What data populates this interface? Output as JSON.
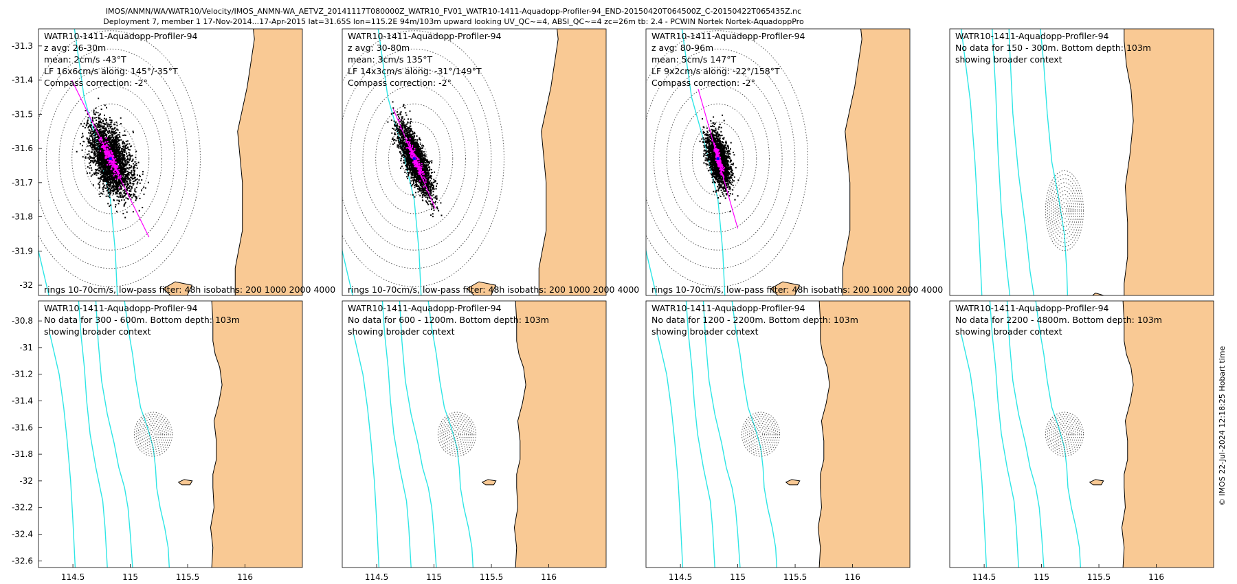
{
  "header": {
    "line1": "IMOS/ANMN/WA/WATR10/Velocity/IMOS_ANMN-WA_AETVZ_20141117T080000Z_WATR10_FV01_WATR10-1411-Aquadopp-Profiler-94_END-20150420T064500Z_C-20150422T065435Z.nc",
    "line2": "Deployment 7, member 1 17-Nov-2014...17-Apr-2015 lat=31.65S lon=115.2E 94m/103m upward looking UV_QC~=4, ABSI_QC~=4 zc=26m tb: 2.4 - PCWIN Nortek Nortek-AquadoppPro"
  },
  "footer_credit": "© IMOS 22-Jul-2024 12:18:25 Hobart time",
  "colors": {
    "land": "#f9c994",
    "isobath": "#2ee6e6",
    "scatter": "#000000",
    "lowpass": "#ff00ff",
    "axis_line": "#ff00ff",
    "mean": "#0000ff",
    "coast": "#000000"
  },
  "chart_data": [
    {
      "type": "scatter",
      "id": "p1",
      "row": 0,
      "col": 0,
      "title": "WATR10-1411-Aquadopp-Profiler-94",
      "lines": [
        "z avg: 26-30m",
        "mean: 2cm/s -43°T",
        "LF 16x6cm/s along: 145°/-35°T",
        "Compass correction: -2°"
      ],
      "footer": "rings 10-70cm/s, low-pass filter: 48h isobaths: 200 1000 2000 4000",
      "xlim": [
        114.9,
        116.0
      ],
      "ylim": [
        -32.03,
        -31.25
      ],
      "yticks": [
        -31.3,
        -31.4,
        -31.5,
        -31.6,
        -31.7,
        -31.8,
        -31.9,
        -32
      ],
      "ytick_labels": [
        "-31.3",
        "-31.4",
        "-31.5",
        "-31.6",
        "-31.7",
        "-31.8",
        "-31.9",
        "-32"
      ],
      "xticks": [],
      "xtick_labels": [],
      "center": [
        115.2,
        -31.63
      ],
      "ring_step_deg": 0.0535,
      "ring_count": 7,
      "cloud": {
        "major_deg": 0.105,
        "minor_deg": 0.06,
        "angle": 145,
        "n": 3000
      },
      "lf": {
        "major_deg": 0.065,
        "minor_deg": 0.018,
        "n": 220
      },
      "axis_line": {
        "angle": 145,
        "half_len_deg": 0.28
      },
      "show_mask_top": true
    },
    {
      "type": "scatter",
      "id": "p2",
      "row": 0,
      "col": 1,
      "title": "WATR10-1411-Aquadopp-Profiler-94",
      "lines": [
        "z avg: 30-80m",
        "mean: 3cm/s 135°T",
        "LF 14x3cm/s along: -31°/149°T",
        "Compass correction: -2°"
      ],
      "footer": "rings 10-70cm/s, low-pass filter: 48h isobaths: 200 1000 2000 4000",
      "xlim": [
        114.9,
        116.0
      ],
      "ylim": [
        -32.03,
        -31.25
      ],
      "yticks": [],
      "ytick_labels": [],
      "xticks": [],
      "xtick_labels": [],
      "center": [
        115.2,
        -31.63
      ],
      "ring_step_deg": 0.0535,
      "ring_count": 7,
      "cloud": {
        "major_deg": 0.105,
        "minor_deg": 0.035,
        "angle": 149,
        "n": 2600
      },
      "lf": {
        "major_deg": 0.075,
        "minor_deg": 0.012,
        "n": 200
      },
      "axis_line": {
        "angle": 149,
        "half_len_deg": 0.17
      },
      "show_mask_top": true
    },
    {
      "type": "scatter",
      "id": "p3",
      "row": 0,
      "col": 2,
      "title": "WATR10-1411-Aquadopp-Profiler-94",
      "lines": [
        "z avg: 80-96m",
        "mean: 5cm/s 147°T",
        "LF 9x2cm/s along: -22°/158°T",
        "Compass correction: -2°"
      ],
      "footer": "rings 10-70cm/s, low-pass filter: 48h isobaths: 200 1000 2000 4000",
      "xlim": [
        114.9,
        116.0
      ],
      "ylim": [
        -32.03,
        -31.25
      ],
      "yticks": [],
      "ytick_labels": [],
      "xticks": [],
      "xtick_labels": [],
      "center": [
        115.2,
        -31.63
      ],
      "ring_step_deg": 0.0535,
      "ring_count": 7,
      "cloud": {
        "major_deg": 0.075,
        "minor_deg": 0.035,
        "angle": 158,
        "n": 2400
      },
      "lf": {
        "major_deg": 0.05,
        "minor_deg": 0.01,
        "n": 180
      },
      "axis_line": {
        "angle": 158,
        "half_len_deg": 0.22
      },
      "show_mask_top": true
    },
    {
      "type": "map",
      "id": "p4",
      "row": 0,
      "col": 3,
      "title": "WATR10-1411-Aquadopp-Profiler-94",
      "lines": [
        "No data for 150 - 300m. Bottom depth: 103m",
        "showing broader context"
      ],
      "xlim": [
        114.2,
        116.5
      ],
      "ylim": [
        -32.0,
        -30.9
      ],
      "yticks": [],
      "ytick_labels": [],
      "xticks": [],
      "xtick_labels": [],
      "center": [
        115.2,
        -31.65
      ],
      "ring_step_deg": 0.0165,
      "ring_count": 10
    },
    {
      "type": "map",
      "id": "p5",
      "row": 1,
      "col": 0,
      "title": "WATR10-1411-Aquadopp-Profiler-94",
      "lines": [
        "No data for 300 - 600m. Bottom depth: 103m",
        "showing broader context"
      ],
      "xlim": [
        114.2,
        116.5
      ],
      "ylim": [
        -32.65,
        -30.65
      ],
      "yticks": [
        -30.8,
        -31,
        -31.2,
        -31.4,
        -31.6,
        -31.8,
        -32,
        -32.2,
        -32.4,
        -32.6
      ],
      "ytick_labels": [
        "-30.8",
        "-31",
        "-31.2",
        "-31.4",
        "-31.6",
        "-31.8",
        "-32",
        "-32.2",
        "-32.4",
        "-32.6"
      ],
      "xticks": [
        114.5,
        115,
        115.5,
        116
      ],
      "xtick_labels": [
        "114.5",
        "115",
        "115.5",
        "116"
      ],
      "center": [
        115.2,
        -31.65
      ],
      "ring_step_deg": 0.0165,
      "ring_count": 10
    },
    {
      "type": "map",
      "id": "p6",
      "row": 1,
      "col": 1,
      "title": "WATR10-1411-Aquadopp-Profiler-94",
      "lines": [
        "No data for 600 - 1200m. Bottom depth: 103m",
        "showing broader context"
      ],
      "xlim": [
        114.2,
        116.5
      ],
      "ylim": [
        -32.65,
        -30.65
      ],
      "yticks": [],
      "ytick_labels": [],
      "xticks": [
        114.5,
        115,
        115.5,
        116
      ],
      "xtick_labels": [
        "114.5",
        "115",
        "115.5",
        "116"
      ],
      "center": [
        115.2,
        -31.65
      ],
      "ring_step_deg": 0.0165,
      "ring_count": 10
    },
    {
      "type": "map",
      "id": "p7",
      "row": 1,
      "col": 2,
      "title": "WATR10-1411-Aquadopp-Profiler-94",
      "lines": [
        "No data for 1200 - 2200m. Bottom depth: 103m",
        "showing broader context"
      ],
      "xlim": [
        114.2,
        116.5
      ],
      "ylim": [
        -32.65,
        -30.65
      ],
      "yticks": [],
      "ytick_labels": [],
      "xticks": [
        114.5,
        115,
        115.5,
        116
      ],
      "xtick_labels": [
        "114.5",
        "115",
        "115.5",
        "116"
      ],
      "center": [
        115.2,
        -31.65
      ],
      "ring_step_deg": 0.0165,
      "ring_count": 10
    },
    {
      "type": "map",
      "id": "p8",
      "row": 1,
      "col": 3,
      "title": "WATR10-1411-Aquadopp-Profiler-94",
      "lines": [
        "No data for 2200 - 4800m. Bottom depth: 103m",
        "showing broader context"
      ],
      "xlim": [
        114.2,
        116.5
      ],
      "ylim": [
        -32.65,
        -30.65
      ],
      "yticks": [],
      "ytick_labels": [],
      "xticks": [
        114.5,
        115,
        115.5,
        116
      ],
      "xtick_labels": [
        "114.5",
        "115",
        "115.5",
        "116"
      ],
      "center": [
        115.2,
        -31.65
      ],
      "ring_step_deg": 0.0165,
      "ring_count": 10
    }
  ],
  "map_features": {
    "coast": [
      [
        115.71,
        -30.65
      ],
      [
        115.72,
        -30.8
      ],
      [
        115.72,
        -30.95
      ],
      [
        115.74,
        -31.05
      ],
      [
        115.78,
        -31.15
      ],
      [
        115.8,
        -31.28
      ],
      [
        115.77,
        -31.42
      ],
      [
        115.73,
        -31.55
      ],
      [
        115.75,
        -31.7
      ],
      [
        115.75,
        -31.84
      ],
      [
        115.72,
        -31.95
      ],
      [
        115.72,
        -32.05
      ],
      [
        115.73,
        -32.2
      ],
      [
        115.7,
        -32.35
      ],
      [
        115.72,
        -32.5
      ],
      [
        115.71,
        -32.65
      ]
    ],
    "isobaths": [
      [
        [
          114.95,
          -30.65
        ],
        [
          114.98,
          -30.85
        ],
        [
          115.02,
          -31.05
        ],
        [
          115.05,
          -31.25
        ],
        [
          115.09,
          -31.45
        ],
        [
          115.15,
          -31.6
        ],
        [
          115.2,
          -31.75
        ],
        [
          115.22,
          -31.9
        ],
        [
          115.23,
          -32.05
        ],
        [
          115.26,
          -32.2
        ],
        [
          115.3,
          -32.35
        ],
        [
          115.33,
          -32.5
        ],
        [
          115.34,
          -32.65
        ]
      ],
      [
        [
          114.7,
          -30.65
        ],
        [
          114.72,
          -30.95
        ],
        [
          114.75,
          -31.25
        ],
        [
          114.8,
          -31.5
        ],
        [
          114.86,
          -31.72
        ],
        [
          114.9,
          -31.9
        ],
        [
          114.95,
          -32.05
        ],
        [
          114.98,
          -32.2
        ],
        [
          115.0,
          -32.4
        ],
        [
          115.02,
          -32.65
        ]
      ],
      [
        [
          114.55,
          -30.65
        ],
        [
          114.57,
          -30.9
        ],
        [
          114.6,
          -31.15
        ],
        [
          114.62,
          -31.4
        ],
        [
          114.65,
          -31.65
        ],
        [
          114.7,
          -31.9
        ],
        [
          114.76,
          -32.15
        ],
        [
          114.78,
          -32.35
        ],
        [
          114.8,
          -32.65
        ]
      ],
      [
        [
          114.3,
          -30.9
        ],
        [
          114.38,
          -31.2
        ],
        [
          114.42,
          -31.45
        ],
        [
          114.45,
          -31.7
        ],
        [
          114.48,
          -32.0
        ],
        [
          114.5,
          -32.3
        ],
        [
          114.52,
          -32.65
        ]
      ]
    ],
    "island": [
      [
        115.42,
        -32.01
      ],
      [
        115.47,
        -31.99
      ],
      [
        115.54,
        -32.0
      ],
      [
        115.52,
        -32.03
      ],
      [
        115.45,
        -32.03
      ]
    ]
  }
}
